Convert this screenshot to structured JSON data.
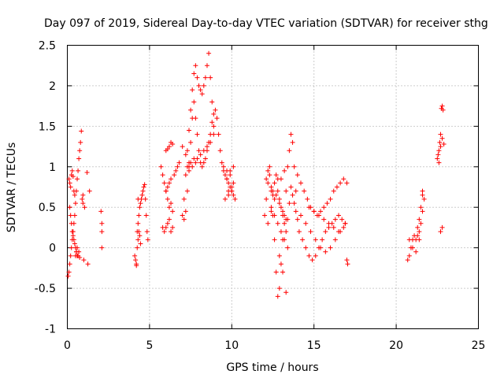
{
  "chart_data": {
    "type": "scatter",
    "title": "Day 097 of 2019, Sidereal Day-to-day VTEC variation (SDTVAR) for receiver sthg",
    "xlabel": "GPS time / hours",
    "ylabel": "SDTVAR / TECUs",
    "xlim": [
      0,
      25
    ],
    "ylim": [
      -1,
      2.5
    ],
    "xticks": [
      "0",
      "5",
      "10",
      "15",
      "20",
      "25"
    ],
    "yticks": [
      "-1",
      "-0.5",
      "0",
      "0.5",
      "1",
      "1.5",
      "2",
      "2.5"
    ],
    "grid": true,
    "marker": "+",
    "color": "#ff0000",
    "series": [
      {
        "name": "SDTVAR",
        "x": [
          0.05,
          0.1,
          0.15,
          0.2,
          0.25,
          0.3,
          0.35,
          0.4,
          0.45,
          0.5,
          0.55,
          0.6,
          0.65,
          0.7,
          0.75,
          0.8,
          0.85,
          0.9,
          0.95,
          0.1,
          0.15,
          0.2,
          0.25,
          0.3,
          0.35,
          0.4,
          0.45,
          0.5,
          0.55,
          0.6,
          0.65,
          0.7,
          0.75,
          0.15,
          0.2,
          0.25,
          0.3,
          0.35,
          0.4,
          0.45,
          0.5,
          0.55,
          0.6,
          0.95,
          1.0,
          1.05,
          1.2,
          1.25,
          1.35,
          2.05,
          2.1,
          2.1,
          2.1,
          4.1,
          4.15,
          4.2,
          4.25,
          4.3,
          4.35,
          4.4,
          4.45,
          4.5,
          4.55,
          4.6,
          4.65,
          4.7,
          4.75,
          4.8,
          4.85,
          4.9,
          4.25,
          4.3,
          4.35,
          4.4,
          4.45,
          4.2,
          4.3,
          5.7,
          5.8,
          5.9,
          6.0,
          6.1,
          6.2,
          6.3,
          6.4,
          5.8,
          5.9,
          6.0,
          6.1,
          6.2,
          6.3,
          6.4,
          6.0,
          6.1,
          6.2,
          6.3,
          6.4,
          6.0,
          6.1,
          6.2,
          6.3,
          6.5,
          6.6,
          6.7,
          6.8,
          7.0,
          7.1,
          7.2,
          7.3,
          7.4,
          7.5,
          7.6,
          7.7,
          7.8,
          7.9,
          8.0,
          8.1,
          8.2,
          8.3,
          8.4,
          8.5,
          8.6,
          8.7,
          8.8,
          8.9,
          7.1,
          7.2,
          7.3,
          7.4,
          7.5,
          7.6,
          7.7,
          7.8,
          7.9,
          8.0,
          8.1,
          8.2,
          8.3,
          8.4,
          8.5,
          8.6,
          8.7,
          8.8,
          8.9,
          9.0,
          7.3,
          7.5,
          7.7,
          7.9,
          8.1,
          8.3,
          8.5,
          8.7,
          8.9,
          7.4,
          7.6,
          7.8,
          7.0,
          7.2,
          7.4,
          9.1,
          9.2,
          9.3,
          9.4,
          9.5,
          9.6,
          9.7,
          9.8,
          9.9,
          10.0,
          10.1,
          10.2,
          9.5,
          9.7,
          9.9,
          10.1,
          9.6,
          9.8,
          10.0,
          9.7,
          9.9,
          10.1,
          9.8,
          10.0,
          12.0,
          12.1,
          12.2,
          12.3,
          12.4,
          12.5,
          12.6,
          12.7,
          12.8,
          12.9,
          13.0,
          13.1,
          13.2,
          13.3,
          13.4,
          13.5,
          13.6,
          13.7,
          13.8,
          13.9,
          12.1,
          12.2,
          12.3,
          12.4,
          12.5,
          12.6,
          12.7,
          12.8,
          12.9,
          13.0,
          13.1,
          13.2,
          13.3,
          13.4,
          13.5,
          13.6,
          13.7,
          13.8,
          13.9,
          14.0,
          12.2,
          12.4,
          12.6,
          12.8,
          13.0,
          13.2,
          12.4,
          12.6,
          12.8,
          13.0,
          13.2,
          13.4,
          12.5,
          12.7,
          12.9,
          13.1,
          13.3,
          12.9,
          13.1,
          13.3,
          14.0,
          14.2,
          14.4,
          14.6,
          14.8,
          15.0,
          15.2,
          15.4,
          15.6,
          15.8,
          16.0,
          16.2,
          16.4,
          16.6,
          16.8,
          17.0,
          14.1,
          14.3,
          14.5,
          14.7,
          14.9,
          15.1,
          15.3,
          15.5,
          15.7,
          15.9,
          16.1,
          16.3,
          16.5,
          16.7,
          16.9,
          14.2,
          14.5,
          14.8,
          15.1,
          15.4,
          15.7,
          16.0,
          16.3,
          16.6,
          16.9,
          14.7,
          15.0,
          15.3,
          15.6,
          15.9,
          16.2,
          16.5,
          16.8,
          17.0,
          17.05,
          20.7,
          20.8,
          20.9,
          21.0,
          21.1,
          21.2,
          21.3,
          21.4,
          21.5,
          21.6,
          21.7,
          20.8,
          21.0,
          21.2,
          21.4,
          21.6,
          21.3,
          21.4,
          21.5,
          21.6,
          22.5,
          22.55,
          22.6,
          22.65,
          22.7,
          22.75,
          22.8,
          22.85,
          22.6,
          22.7,
          22.8,
          22.9,
          22.7,
          22.8
        ],
        "y": [
          -0.35,
          -0.3,
          -0.2,
          -0.1,
          0.0,
          0.1,
          0.2,
          0.3,
          0.4,
          0.55,
          0.7,
          0.85,
          0.95,
          1.1,
          1.2,
          1.3,
          1.44,
          0.6,
          0.55,
          0.85,
          0.8,
          0.75,
          0.9,
          0.95,
          0.88,
          0.7,
          0.65,
          -0.1,
          -0.05,
          0.0,
          -0.1,
          -0.05,
          -0.12,
          0.5,
          0.4,
          0.3,
          0.2,
          0.15,
          0.1,
          0.05,
          0.0,
          -0.05,
          -0.1,
          0.65,
          -0.15,
          0.5,
          0.93,
          -0.2,
          0.7,
          0.45,
          0.3,
          0.2,
          0.0,
          -0.1,
          -0.15,
          -0.2,
          0.2,
          0.3,
          0.4,
          0.5,
          0.55,
          0.6,
          0.65,
          0.7,
          0.75,
          0.78,
          0.6,
          0.4,
          0.2,
          0.1,
          0.0,
          0.1,
          0.2,
          0.15,
          0.05,
          -0.22,
          0.6,
          1.0,
          0.9,
          0.8,
          0.7,
          0.6,
          0.5,
          0.55,
          0.45,
          0.25,
          0.2,
          0.25,
          0.3,
          0.35,
          0.2,
          0.25,
          1.2,
          1.22,
          1.25,
          1.3,
          1.28,
          0.7,
          0.75,
          0.8,
          0.85,
          0.9,
          0.95,
          1.0,
          1.05,
          0.4,
          0.6,
          0.9,
          1.2,
          1.45,
          1.7,
          1.95,
          2.15,
          2.25,
          2.1,
          2.0,
          1.95,
          1.9,
          2.0,
          2.1,
          2.25,
          2.4,
          2.1,
          1.8,
          1.5,
          0.35,
          0.45,
          0.7,
          1.0,
          1.3,
          1.6,
          1.8,
          1.6,
          1.4,
          1.2,
          1.05,
          1.0,
          1.05,
          1.1,
          1.2,
          1.3,
          1.4,
          1.55,
          1.65,
          1.7,
          1.0,
          1.05,
          1.1,
          1.1,
          1.15,
          1.2,
          1.25,
          1.3,
          1.4,
          0.95,
          1.0,
          1.05,
          1.25,
          1.15,
          1.05,
          1.6,
          1.4,
          1.2,
          1.05,
          0.95,
          0.9,
          0.85,
          0.8,
          0.75,
          0.7,
          0.65,
          0.6,
          1.0,
          0.95,
          0.9,
          0.8,
          0.6,
          0.7,
          0.75,
          0.85,
          0.95,
          1.0,
          0.65,
          0.7,
          0.4,
          0.6,
          0.8,
          0.9,
          0.7,
          0.4,
          0.1,
          -0.3,
          -0.6,
          -0.5,
          -0.2,
          0.1,
          0.4,
          0.7,
          1.0,
          1.2,
          1.4,
          1.3,
          1.0,
          0.7,
          0.85,
          0.95,
          1.0,
          0.75,
          0.65,
          0.8,
          0.9,
          0.85,
          0.6,
          0.5,
          0.4,
          0.3,
          0.2,
          0.35,
          0.55,
          0.75,
          0.65,
          0.55,
          0.45,
          0.35,
          0.3,
          0.45,
          0.6,
          0.7,
          0.85,
          0.95,
          0.5,
          0.4,
          0.3,
          0.2,
          0.1,
          0.0,
          0.7,
          0.65,
          0.55,
          0.45,
          0.35,
          -0.1,
          -0.3,
          -0.55,
          0.9,
          0.8,
          0.7,
          0.6,
          0.5,
          0.45,
          0.4,
          0.45,
          0.5,
          0.55,
          0.6,
          0.7,
          0.75,
          0.8,
          0.85,
          0.8,
          0.2,
          0.1,
          0.0,
          -0.1,
          -0.15,
          -0.1,
          0.0,
          0.1,
          0.2,
          0.25,
          0.3,
          0.35,
          0.4,
          0.35,
          0.3,
          0.4,
          0.3,
          0.2,
          0.1,
          0.0,
          -0.05,
          0.0,
          0.1,
          0.2,
          0.3,
          0.5,
          0.45,
          0.4,
          0.35,
          0.3,
          0.25,
          0.2,
          0.25,
          -0.15,
          -0.2,
          -0.15,
          -0.1,
          0.0,
          0.1,
          0.15,
          0.1,
          0.15,
          0.2,
          0.3,
          0.45,
          0.6,
          0.1,
          0.0,
          -0.05,
          0.1,
          0.7,
          0.25,
          0.35,
          0.5,
          0.65,
          1.1,
          1.15,
          1.2,
          1.3,
          1.4,
          1.72,
          1.75,
          1.7,
          1.05,
          1.25,
          1.35,
          1.28,
          0.2,
          0.25
        ]
      }
    ]
  }
}
